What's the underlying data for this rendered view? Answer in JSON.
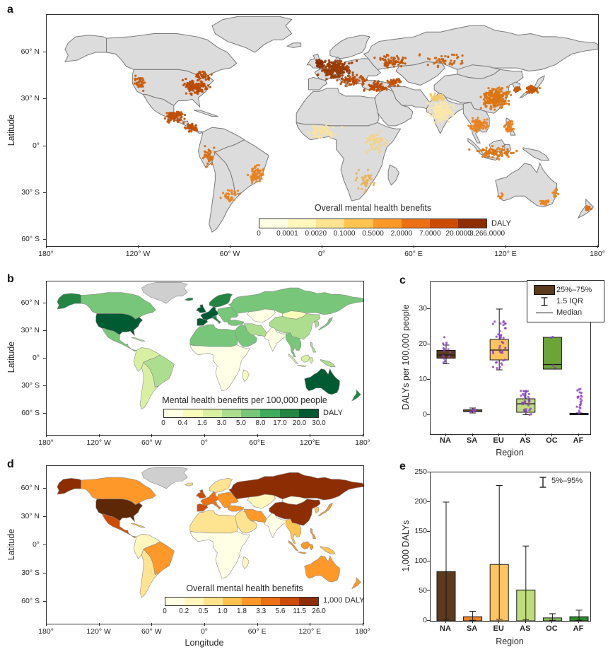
{
  "figure": {
    "background": "#FFFFFF",
    "text_color": "#262626"
  },
  "panels": {
    "a": {
      "label": "a",
      "ylabel": "Latitude",
      "ytick_labels": [
        "60° N",
        "30° N",
        "0°",
        "30° S",
        "60° S"
      ],
      "xtick_labels": [
        "180°",
        "120° W",
        "60° W",
        "0°",
        "60° E",
        "120° E",
        "180°"
      ],
      "colorbar": {
        "title": "Overall mental health benefits",
        "unit": "DALY",
        "tick_labels": [
          "0",
          "0.0001",
          "0.0020",
          "0.1000",
          "0.5000",
          "2.0000",
          "7.0000",
          "20.0000",
          "3,266.0000"
        ],
        "colors": [
          "#FFFFE5",
          "#FFF7BC",
          "#FEE391",
          "#FEC44F",
          "#FE9929",
          "#EC7014",
          "#CC4C02",
          "#8C2D04"
        ]
      },
      "map": {
        "land": "#DCDCDC",
        "coast": "#787878",
        "dot_clusters": [
          {
            "lon": 9,
            "lat": 49,
            "sx": 10,
            "sy": 5.5,
            "n": 240,
            "color": "#993D04"
          },
          {
            "lon": -2,
            "lat": 53,
            "sx": 3,
            "sy": 2.5,
            "n": 40,
            "color": "#8C2D04"
          },
          {
            "lon": 20,
            "lat": 42,
            "sx": 8,
            "sy": 3,
            "n": 60,
            "color": "#B84A03"
          },
          {
            "lon": 35,
            "lat": 38,
            "sx": 8,
            "sy": 3,
            "n": 70,
            "color": "#B84A03"
          },
          {
            "lon": 47,
            "lat": 41,
            "sx": 5,
            "sy": 2.5,
            "n": 40,
            "color": "#C05206"
          },
          {
            "lon": 45,
            "lat": 54,
            "sx": 10,
            "sy": 4,
            "n": 70,
            "color": "#BE5406"
          },
          {
            "lon": 80,
            "lat": 55,
            "sx": 16,
            "sy": 4,
            "n": 45,
            "color": "#CB6410"
          },
          {
            "lon": -83,
            "lat": 38,
            "sx": 8,
            "sy": 5,
            "n": 115,
            "color": "#B84A03"
          },
          {
            "lon": -120,
            "lat": 41,
            "sx": 3.5,
            "sy": 5,
            "n": 35,
            "color": "#C85A08"
          },
          {
            "lon": -78,
            "lat": 45,
            "sx": 5,
            "sy": 2.5,
            "n": 40,
            "color": "#B84A03"
          },
          {
            "lon": -97,
            "lat": 19,
            "sx": 6,
            "sy": 3.5,
            "n": 90,
            "color": "#C04E05"
          },
          {
            "lon": -86,
            "lat": 12,
            "sx": 4,
            "sy": 3,
            "n": 40,
            "color": "#C04E05"
          },
          {
            "lon": -43,
            "lat": -18,
            "sx": 5,
            "sy": 6,
            "n": 70,
            "color": "#E8821E"
          },
          {
            "lon": -74,
            "lat": -6,
            "sx": 3.5,
            "sy": 7,
            "n": 45,
            "color": "#D86E12"
          },
          {
            "lon": -60,
            "lat": -32,
            "sx": 5,
            "sy": 4,
            "n": 35,
            "color": "#E8821E"
          },
          {
            "lon": 113,
            "lat": 31,
            "sx": 8,
            "sy": 7,
            "n": 240,
            "color": "#DB7514"
          },
          {
            "lon": 137,
            "lat": 36,
            "sx": 4,
            "sy": 2.5,
            "n": 55,
            "color": "#C85A08"
          },
          {
            "lon": 127,
            "lat": 36.5,
            "sx": 2,
            "sy": 1.5,
            "n": 25,
            "color": "#C85A08"
          },
          {
            "lon": 102,
            "lat": 14,
            "sx": 6,
            "sy": 5,
            "n": 80,
            "color": "#E8821E"
          },
          {
            "lon": 112,
            "lat": -4,
            "sx": 12,
            "sy": 3.5,
            "n": 90,
            "color": "#DB7514"
          },
          {
            "lon": 122,
            "lat": 12,
            "sx": 3,
            "sy": 4,
            "n": 45,
            "color": "#E8821E"
          },
          {
            "lon": 78,
            "lat": 22,
            "sx": 7,
            "sy": 6,
            "n": 170,
            "color": "#FBE7A8"
          },
          {
            "lon": 75,
            "lat": 31,
            "sx": 5,
            "sy": 2.5,
            "n": 40,
            "color": "#F3C868"
          },
          {
            "lon": 0,
            "lat": 9,
            "sx": 10,
            "sy": 4,
            "n": 80,
            "color": "#F8E3A0"
          },
          {
            "lon": 35,
            "lat": 2,
            "sx": 6,
            "sy": 6,
            "n": 60,
            "color": "#F3D288"
          },
          {
            "lon": 28,
            "lat": -22,
            "sx": 6,
            "sy": 6,
            "n": 45,
            "color": "#E8B25A"
          },
          {
            "lon": 146,
            "lat": -36,
            "sx": 4,
            "sy": 2,
            "n": 18,
            "color": "#E8821E"
          },
          {
            "lon": 152,
            "lat": -29,
            "sx": 2,
            "sy": 4,
            "n": 12,
            "color": "#E8821E"
          },
          {
            "lon": 116,
            "lat": -32,
            "sx": 2,
            "sy": 3,
            "n": 8,
            "color": "#E8821E"
          },
          {
            "lon": 173,
            "lat": -40,
            "sx": 2.5,
            "sy": 3,
            "n": 14,
            "color": "#D86E12"
          }
        ]
      }
    },
    "b": {
      "label": "b",
      "ylabel": "Latitude",
      "ytick_labels": [
        "60° N",
        "30° N",
        "0°",
        "30° S",
        "60° S"
      ],
      "xtick_labels": [
        "180°",
        "120° W",
        "60° W",
        "0°",
        "60°E",
        "120°E",
        "180°"
      ],
      "colorbar": {
        "title": "Mental health benefits per 100,000 people",
        "unit": "DALY",
        "tick_labels": [
          "0",
          "0.4",
          "1.6",
          "3.0",
          "5.0",
          "8.0",
          "17.0",
          "20.0",
          "30.0"
        ],
        "colors": [
          "#FFFFE5",
          "#F7FCB9",
          "#D9F0A3",
          "#ADDD8E",
          "#78C679",
          "#41AB5D",
          "#238443",
          "#005A32"
        ]
      },
      "map": {
        "border": "#8A8A8A",
        "fills": {
          "greenland": "#CFCFCF",
          "alaska": "#238443",
          "canada": "#78C679",
          "usa": "#005A32",
          "mexico": "#78C679",
          "cuba": "#ADDD8E",
          "sa_north": "#D9F0A3",
          "brazil": "#ADDD8E",
          "sa_south": "#D9F0A3",
          "iceland": "#238443",
          "uk": "#005A32",
          "iberia": "#005A32",
          "weurope": "#005A32",
          "italy": "#238443",
          "scandinavia": "#238443",
          "easteurope": "#78C679",
          "turkey": "#78C679",
          "russia": "#78C679",
          "kazakh": "#FFFFE5",
          "mongolia": "#F7FCB9",
          "china": "#ADDD8E",
          "korea": "#ADDD8E",
          "japan": "#78C679",
          "india": "#FFFFE5",
          "mideast": "#78C679",
          "iran": "#ADDD8E",
          "nafrica": "#78C679",
          "africa_sub": "#FFFFE5",
          "madagascar": "#F7FCB9",
          "seasia": "#78C679",
          "sumatra": "#D9F0A3",
          "java": "#D9F0A3",
          "borneo": "#D9F0A3",
          "sulawesi": "#D9F0A3",
          "newguinea": "#ADDD8E",
          "philippines": "#ADDD8E",
          "australia": "#005A32",
          "nz": "#238443"
        }
      }
    },
    "c": {
      "label": "c",
      "ylabel": "DALYs per 100,000 people",
      "xlabel": "Region",
      "ytick_labels": [
        "0",
        "10",
        "20",
        "30"
      ],
      "categories": [
        "NA",
        "SA",
        "EU",
        "AS",
        "OC",
        "AF"
      ],
      "scatter_color": "#8B3FC6",
      "legend": {
        "items": [
          {
            "label": "25%–75%"
          },
          {
            "label": "1.5 IQR"
          },
          {
            "label": "Median"
          }
        ]
      }
    },
    "d": {
      "label": "d",
      "ylabel": "Latitude",
      "xlabel": "Longitude",
      "ytick_labels": [
        "60° N",
        "30° N",
        "0°",
        "30° S",
        "60° S"
      ],
      "xtick_labels": [
        "180°",
        "120° W",
        "60° W",
        "0°",
        "60° E",
        "120° E",
        "180°"
      ],
      "colorbar": {
        "title": "Overall mental health benefits",
        "unit": "1,000 DALY",
        "tick_labels": [
          "0",
          "0.2",
          "0.5",
          "1.0",
          "1.8",
          "3.3",
          "5.6",
          "11.5",
          "26.0"
        ],
        "colors": [
          "#FFFFE5",
          "#FFF7BC",
          "#FEE391",
          "#FEC44F",
          "#FE9929",
          "#EC7014",
          "#CC4C02",
          "#8C2D04"
        ]
      },
      "map": {
        "border": "#8A8A8A",
        "fills": {
          "greenland": "#CFCFCF",
          "alaska": "#8C2D04",
          "canada": "#FE9929",
          "usa": "#5E2807",
          "mexico": "#CC4C02",
          "cuba": "#FEC44F",
          "sa_north": "#FFF7BC",
          "brazil": "#FE9929",
          "sa_south": "#FEE391",
          "iceland": "#FEE391",
          "uk": "#CC4C02",
          "iberia": "#CC4C02",
          "weurope": "#EC7014",
          "italy": "#EC7014",
          "scandinavia": "#FEE391",
          "easteurope": "#FE9929",
          "turkey": "#FE9929",
          "russia": "#8C2D04",
          "kazakh": "#FFF7BC",
          "mongolia": "#FFFFE5",
          "china": "#8C2D04",
          "korea": "#FEC44F",
          "japan": "#FE9929",
          "india": "#FFFFE5",
          "mideast": "#FEE391",
          "iran": "#FE9929",
          "nafrica": "#FEE391",
          "africa_sub": "#FFFFE5",
          "madagascar": "#FFF7BC",
          "seasia": "#FEC44F",
          "sumatra": "#FE9929",
          "java": "#FE9929",
          "borneo": "#FE9929",
          "sulawesi": "#FE9929",
          "newguinea": "#FEC44F",
          "philippines": "#FE9929",
          "australia": "#FE9929",
          "nz": "#FE9929"
        }
      }
    },
    "e": {
      "label": "e",
      "ylabel": "1,000 DALYs",
      "xlabel": "Region",
      "ytick_labels": [
        "0",
        "50",
        "100",
        "150",
        "200",
        "250"
      ],
      "categories": [
        "NA",
        "SA",
        "EU",
        "AS",
        "OC",
        "AF"
      ],
      "legend_label": "5%–95%"
    }
  },
  "chart_data": [
    {
      "panel": "a",
      "type": "scatter",
      "title": "Overall mental health benefits",
      "unit": "DALY",
      "legend_breaks": [
        "0",
        "0.0001",
        "0.0020",
        "0.1000",
        "0.5000",
        "2.0000",
        "7.0000",
        "20.0000",
        "3,266.0000"
      ],
      "xlabel": "",
      "ylabel": "Latitude",
      "x_range_deg": [
        -180,
        180
      ],
      "y_range_deg": [
        -65,
        85
      ]
    },
    {
      "panel": "b",
      "type": "heatmap",
      "title": "Mental health benefits per 100,000 people",
      "unit": "DALY",
      "legend_breaks": [
        "0",
        "0.4",
        "1.6",
        "3.0",
        "5.0",
        "8.0",
        "17.0",
        "20.0",
        "30.0"
      ]
    },
    {
      "panel": "c",
      "type": "box",
      "categories": [
        "NA",
        "SA",
        "EU",
        "AS",
        "OC",
        "AF"
      ],
      "ylabel": "DALYs per 100,000 people",
      "xlabel": "Region",
      "ylim": [
        -5,
        37.5
      ],
      "yticks": [
        0,
        10,
        20,
        30
      ],
      "series": [
        {
          "name": "NA",
          "color": "#5C3A1E",
          "whisker_low": 14.5,
          "q1": 16.1,
          "median": 17.0,
          "q3": 18.3,
          "whisker_high": 19.8,
          "points": {
            "count": 14,
            "min": 14.8,
            "max": 22.2,
            "jitter": 6
          }
        },
        {
          "name": "SA",
          "color": "#F28522",
          "whisker_low": 0.6,
          "q1": 1.0,
          "median": 1.2,
          "q3": 1.5,
          "whisker_high": 2.0,
          "points": {
            "values": [
              0.9,
              1.1,
              1.25,
              1.4,
              1.7
            ],
            "jitter": 4
          }
        },
        {
          "name": "EU",
          "color": "#FDC55F",
          "whisker_low": 12.8,
          "q1": 15.6,
          "median": 18.4,
          "q3": 21.4,
          "whisker_high": 30.0,
          "points": {
            "count": 38,
            "min": 13.0,
            "max": 27.0,
            "jitter": 9
          }
        },
        {
          "name": "AS",
          "color": "#BFDC7D",
          "whisker_low": 0.1,
          "q1": 0.8,
          "median": 3.2,
          "q3": 4.6,
          "whisker_high": 6.8,
          "points": {
            "count": 34,
            "min": 0.1,
            "max": 6.9,
            "jitter": 8
          }
        },
        {
          "name": "OC",
          "color": "#6CA437",
          "whisker_low": 13.0,
          "q1": 13.0,
          "median": 14.3,
          "q3": 22.0,
          "whisker_high": 22.0,
          "points": {
            "values": [
              22.1,
              21.9,
              13.4,
              14.0
            ],
            "jitter": 5
          }
        },
        {
          "name": "AF",
          "color": "#141414",
          "whisker_low": 0.1,
          "q1": 0.15,
          "median": 0.3,
          "q3": 0.5,
          "whisker_high": 0.6,
          "points": {
            "count": 22,
            "min": 0.0,
            "max": 7.5,
            "jitter": 4
          }
        }
      ]
    },
    {
      "panel": "d",
      "type": "heatmap",
      "title": "Overall mental health benefits",
      "unit": "1,000 DALY",
      "legend_breaks": [
        "0",
        "0.2",
        "0.5",
        "1.0",
        "1.8",
        "3.3",
        "5.6",
        "11.5",
        "26.0"
      ]
    },
    {
      "panel": "e",
      "type": "bar",
      "categories": [
        "NA",
        "SA",
        "EU",
        "AS",
        "OC",
        "AF"
      ],
      "values": [
        83,
        7,
        95,
        52,
        5,
        7
      ],
      "err_low": [
        3,
        1,
        3,
        2,
        1,
        1
      ],
      "err_high": [
        200,
        16,
        228,
        126,
        12,
        18
      ],
      "colors": [
        "#5C3A1E",
        "#F28522",
        "#FDC55F",
        "#BFDC7D",
        "#86BF5D",
        "#2E8B2B"
      ],
      "title": "",
      "xlabel": "Region",
      "ylabel": "1,000 DALYs",
      "ylim": [
        0,
        250
      ],
      "yticks": [
        0,
        50,
        100,
        150,
        200,
        250
      ],
      "legend_label": "5%–95%"
    }
  ]
}
